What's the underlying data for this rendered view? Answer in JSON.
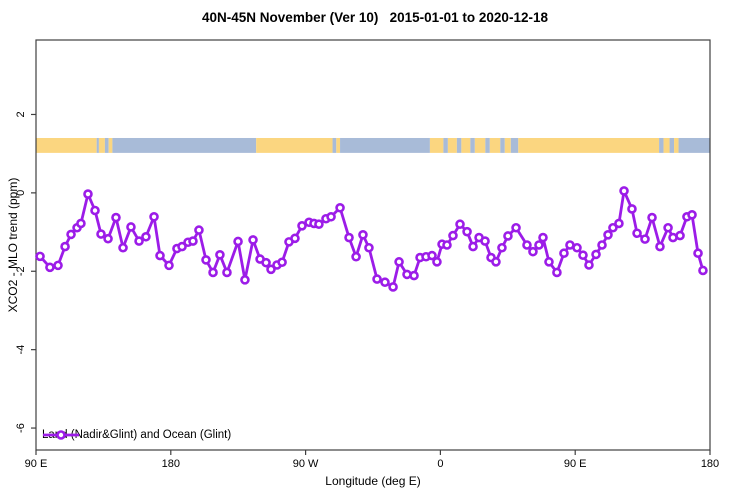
{
  "title": "40N-45N November (Ver 10)   2015-01-01 to 2020-12-18",
  "legend": {
    "label": "Land (Nadir&Glint) and Ocean (Glint)"
  },
  "axes": {
    "x": {
      "label": "Longitude (deg E)",
      "ticks": [
        {
          "label": "90 E",
          "lon": 90
        },
        {
          "label": "180",
          "lon": 180
        },
        {
          "label": "90 W",
          "lon": 270
        },
        {
          "label": "0",
          "lon": 360
        },
        {
          "label": "90 E",
          "lon": 450
        },
        {
          "label": "180",
          "lon": 540
        }
      ]
    },
    "y": {
      "label": "XCO2 - MLO trend (ppm)",
      "ticks": [
        {
          "label": "2",
          "v": 2
        },
        {
          "label": "0",
          "v": 0
        },
        {
          "label": "-2",
          "v": -2
        },
        {
          "label": "-4",
          "v": -4
        },
        {
          "label": "-6",
          "v": -6
        }
      ]
    }
  },
  "colors": {
    "series": "#9C1CE8",
    "land": "#FBD680",
    "ocean": "#A8BBD8",
    "axis": "#3F3F3F",
    "text": "#000000"
  },
  "map_strip": {
    "description": "latitude-band land/ocean strip",
    "value_band": [
      1.02,
      1.4
    ],
    "segments": [
      {
        "from": 90,
        "to": 130.5,
        "kind": "land"
      },
      {
        "from": 130.5,
        "to": 132,
        "kind": "ocean"
      },
      {
        "from": 132,
        "to": 136,
        "kind": "land"
      },
      {
        "from": 136,
        "to": 138.5,
        "kind": "ocean"
      },
      {
        "from": 138.5,
        "to": 141,
        "kind": "land"
      },
      {
        "from": 141,
        "to": 237,
        "kind": "ocean"
      },
      {
        "from": 237,
        "to": 288,
        "kind": "land"
      },
      {
        "from": 288,
        "to": 290.5,
        "kind": "ocean"
      },
      {
        "from": 290.5,
        "to": 293,
        "kind": "land"
      },
      {
        "from": 293,
        "to": 353,
        "kind": "ocean"
      },
      {
        "from": 353,
        "to": 362,
        "kind": "land"
      },
      {
        "from": 362,
        "to": 365,
        "kind": "ocean"
      },
      {
        "from": 365,
        "to": 371,
        "kind": "land"
      },
      {
        "from": 371,
        "to": 374,
        "kind": "ocean"
      },
      {
        "from": 374,
        "to": 380,
        "kind": "land"
      },
      {
        "from": 380,
        "to": 383,
        "kind": "ocean"
      },
      {
        "from": 383,
        "to": 390,
        "kind": "land"
      },
      {
        "from": 390,
        "to": 393,
        "kind": "ocean"
      },
      {
        "from": 393,
        "to": 400,
        "kind": "land"
      },
      {
        "from": 400,
        "to": 403,
        "kind": "ocean"
      },
      {
        "from": 403,
        "to": 407,
        "kind": "land"
      },
      {
        "from": 407,
        "to": 412,
        "kind": "ocean"
      },
      {
        "from": 412,
        "to": 506,
        "kind": "land"
      },
      {
        "from": 506,
        "to": 509,
        "kind": "ocean"
      },
      {
        "from": 509,
        "to": 513,
        "kind": "land"
      },
      {
        "from": 513,
        "to": 516,
        "kind": "ocean"
      },
      {
        "from": 516,
        "to": 519,
        "kind": "land"
      },
      {
        "from": 519,
        "to": 540,
        "kind": "ocean"
      }
    ]
  },
  "chart_data": {
    "type": "line",
    "title": "40N-45N November (Ver 10)   2015-01-01 to 2020-12-18",
    "xlabel": "Longitude (deg E)",
    "ylabel": "XCO2 - MLO trend (ppm)",
    "xlim": [
      90,
      540
    ],
    "ylim": [
      -6.56,
      3.9
    ],
    "grid": false,
    "legend_position": "bottom-left-inside",
    "series": [
      {
        "name": "Land (Nadir&Glint) and Ocean (Glint)",
        "marker": "open-circle",
        "color": "#9C1CE8",
        "points": [
          [
            92.7,
            -1.62
          ],
          [
            99.3,
            -1.9
          ],
          [
            104.7,
            -1.85
          ],
          [
            109.4,
            -1.37
          ],
          [
            113.4,
            -1.06
          ],
          [
            117.4,
            -0.89
          ],
          [
            120.0,
            -0.78
          ],
          [
            124.7,
            -0.03
          ],
          [
            129.4,
            -0.45
          ],
          [
            133.4,
            -1.05
          ],
          [
            138.1,
            -1.17
          ],
          [
            143.4,
            -0.63
          ],
          [
            148.1,
            -1.4
          ],
          [
            153.4,
            -0.87
          ],
          [
            158.8,
            -1.23
          ],
          [
            163.4,
            -1.12
          ],
          [
            168.8,
            -0.61
          ],
          [
            172.8,
            -1.6
          ],
          [
            178.8,
            -1.85
          ],
          [
            184.1,
            -1.42
          ],
          [
            187.5,
            -1.37
          ],
          [
            191.5,
            -1.26
          ],
          [
            194.8,
            -1.23
          ],
          [
            198.8,
            -0.95
          ],
          [
            203.5,
            -1.71
          ],
          [
            208.2,
            -2.03
          ],
          [
            212.8,
            -1.58
          ],
          [
            217.5,
            -2.03
          ],
          [
            224.9,
            -1.24
          ],
          [
            229.5,
            -2.22
          ],
          [
            234.9,
            -1.2
          ],
          [
            239.6,
            -1.69
          ],
          [
            243.6,
            -1.78
          ],
          [
            246.9,
            -1.95
          ],
          [
            250.9,
            -1.84
          ],
          [
            254.3,
            -1.77
          ],
          [
            258.9,
            -1.25
          ],
          [
            262.9,
            -1.16
          ],
          [
            267.6,
            -0.84
          ],
          [
            272.3,
            -0.75
          ],
          [
            275.6,
            -0.78
          ],
          [
            278.9,
            -0.8
          ],
          [
            283.6,
            -0.66
          ],
          [
            287.0,
            -0.61
          ],
          [
            293.0,
            -0.38
          ],
          [
            299.0,
            -1.14
          ],
          [
            303.7,
            -1.63
          ],
          [
            308.3,
            -1.07
          ],
          [
            312.3,
            -1.4
          ],
          [
            317.7,
            -2.2
          ],
          [
            323.0,
            -2.28
          ],
          [
            328.4,
            -2.4
          ],
          [
            332.4,
            -1.76
          ],
          [
            337.7,
            -2.08
          ],
          [
            342.4,
            -2.11
          ],
          [
            346.4,
            -1.65
          ],
          [
            350.4,
            -1.63
          ],
          [
            354.4,
            -1.6
          ],
          [
            357.7,
            -1.76
          ],
          [
            361.1,
            -1.31
          ],
          [
            364.4,
            -1.33
          ],
          [
            368.4,
            -1.09
          ],
          [
            373.1,
            -0.8
          ],
          [
            377.8,
            -0.99
          ],
          [
            381.8,
            -1.37
          ],
          [
            385.8,
            -1.14
          ],
          [
            389.8,
            -1.23
          ],
          [
            393.8,
            -1.65
          ],
          [
            397.1,
            -1.76
          ],
          [
            401.1,
            -1.4
          ],
          [
            405.1,
            -1.1
          ],
          [
            410.5,
            -0.89
          ],
          [
            417.8,
            -1.33
          ],
          [
            421.8,
            -1.5
          ],
          [
            425.8,
            -1.33
          ],
          [
            428.5,
            -1.14
          ],
          [
            432.5,
            -1.76
          ],
          [
            437.8,
            -2.03
          ],
          [
            442.5,
            -1.54
          ],
          [
            446.5,
            -1.33
          ],
          [
            451.2,
            -1.4
          ],
          [
            455.2,
            -1.59
          ],
          [
            459.2,
            -1.84
          ],
          [
            463.9,
            -1.57
          ],
          [
            467.9,
            -1.33
          ],
          [
            471.9,
            -1.07
          ],
          [
            475.2,
            -0.89
          ],
          [
            479.2,
            -0.78
          ],
          [
            482.6,
            0.05
          ],
          [
            487.9,
            -0.41
          ],
          [
            491.3,
            -1.03
          ],
          [
            496.6,
            -1.18
          ],
          [
            501.3,
            -0.63
          ],
          [
            506.6,
            -1.37
          ],
          [
            512.0,
            -0.89
          ],
          [
            515.3,
            -1.14
          ],
          [
            520.0,
            -1.09
          ],
          [
            524.6,
            -0.61
          ],
          [
            528.0,
            -0.56
          ],
          [
            532.0,
            -1.54
          ],
          [
            535.3,
            -1.98
          ]
        ]
      }
    ]
  }
}
